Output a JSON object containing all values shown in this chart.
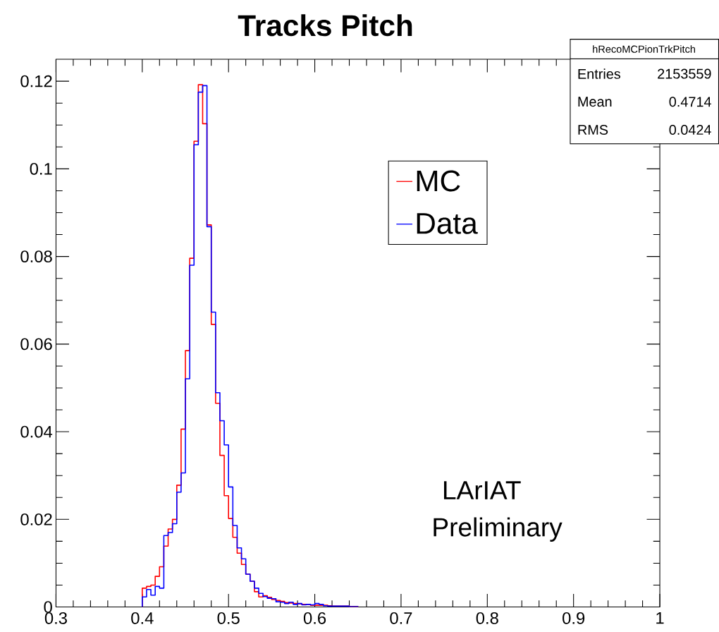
{
  "chart_data": {
    "type": "histogram",
    "title": "Tracks Pitch",
    "bins": [
      0.4,
      0.405,
      0.41,
      0.415,
      0.42,
      0.425,
      0.43,
      0.435,
      0.44,
      0.445,
      0.45,
      0.455,
      0.46,
      0.465,
      0.47,
      0.475,
      0.48,
      0.485,
      0.49,
      0.495,
      0.5,
      0.505,
      0.51,
      0.515,
      0.52,
      0.525,
      0.53,
      0.535,
      0.54,
      0.545,
      0.55,
      0.555,
      0.56,
      0.565,
      0.57,
      0.575,
      0.58,
      0.585,
      0.59,
      0.595,
      0.6,
      0.605,
      0.61,
      0.615,
      0.62,
      0.625,
      0.63,
      0.635,
      0.64,
      0.645,
      0.65
    ],
    "series": [
      {
        "name": "MC",
        "color": "#ff0000",
        "values": [
          0.0043,
          0.0047,
          0.005,
          0.007,
          0.0092,
          0.0139,
          0.0178,
          0.02,
          0.0278,
          0.0406,
          0.0585,
          0.0796,
          0.1063,
          0.1192,
          0.1103,
          0.0872,
          0.0645,
          0.0465,
          0.0346,
          0.0254,
          0.0202,
          0.0159,
          0.0123,
          0.0097,
          0.0075,
          0.0059,
          0.0035,
          0.0023,
          0.0026,
          0.0022,
          0.0017,
          0.0015,
          0.0013,
          0.001,
          0.0009,
          0.0008,
          0.0007,
          0.0006,
          0.0006,
          0.0004,
          0.0004,
          0.0004,
          0.0004,
          0.0003,
          0.0002,
          0.0002,
          0.0002,
          0.0002,
          0.0001,
          0.0001
        ]
      },
      {
        "name": "Data",
        "color": "#0000ff",
        "values": [
          0.0023,
          0.004,
          0.0027,
          0.0047,
          0.0043,
          0.0163,
          0.017,
          0.019,
          0.0262,
          0.0306,
          0.0521,
          0.078,
          0.1055,
          0.1175,
          0.119,
          0.0868,
          0.0673,
          0.0489,
          0.0425,
          0.037,
          0.0274,
          0.0186,
          0.0135,
          0.011,
          0.0075,
          0.0059,
          0.0043,
          0.0031,
          0.0024,
          0.002,
          0.0019,
          0.0012,
          0.0011,
          0.0008,
          0.0011,
          0.0006,
          0.0008,
          0.0005,
          0.0006,
          0.0005,
          0.0008,
          0.0006,
          0.0003,
          0.0002,
          0.0002,
          0.0002,
          0.0002,
          0.0002,
          0.0001,
          0.0001
        ]
      }
    ],
    "xlim": [
      0.3,
      1
    ],
    "xticks": [
      0.3,
      0.4,
      0.5,
      0.6,
      0.7,
      0.8,
      0.9,
      1
    ],
    "ylim": [
      0,
      0.125
    ],
    "yticks": [
      0,
      0.02,
      0.04,
      0.06,
      0.08,
      0.1,
      0.12
    ],
    "legend": "top right",
    "grid": false,
    "annotations": [
      "hRecoMCPionTrkPitch",
      "Entries",
      "2153559",
      "Mean",
      "0.4714",
      "RMS",
      "0.0424",
      "LArIAT",
      "Preliminary"
    ]
  }
}
